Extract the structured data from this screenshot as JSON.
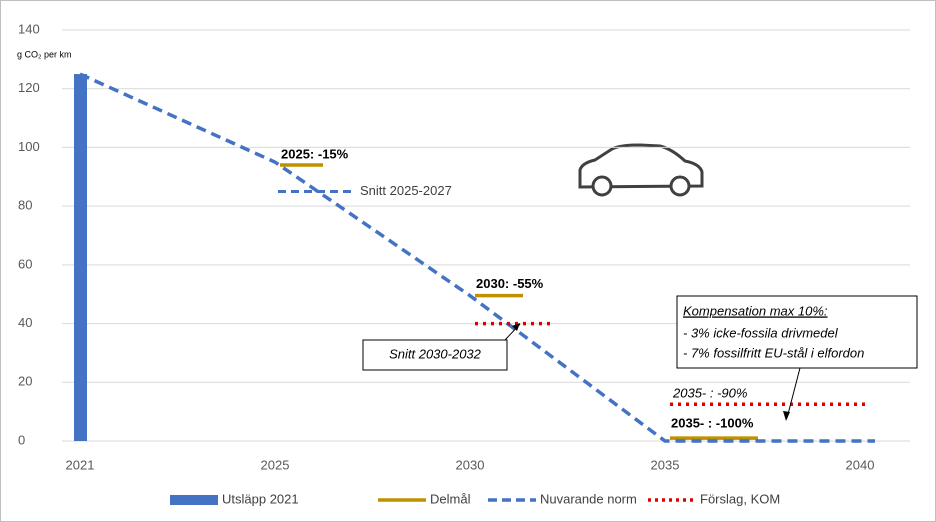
{
  "chart_data": {
    "type": "combo",
    "y_unit_label": "g CO₂ per km",
    "categories": [
      "2021",
      "2025",
      "2030",
      "2035",
      "2040"
    ],
    "ylim": [
      0,
      140
    ],
    "yticks": [
      0,
      20,
      40,
      60,
      80,
      100,
      120,
      140
    ],
    "grid": true,
    "legend": "bottom",
    "series": [
      {
        "name": "Utsläpp 2021",
        "color": "#4472c4",
        "kind": "bar",
        "values": [
          125,
          null,
          null,
          null,
          null
        ]
      },
      {
        "name": "Delmål",
        "color": "#bf9000",
        "kind": "segment",
        "values": [
          null,
          94,
          49.5,
          1,
          null
        ]
      },
      {
        "name": "Nuvarande norm",
        "color": "#4472c4",
        "kind": "dashed-line",
        "values": [
          125,
          95,
          49.5,
          0,
          0
        ]
      },
      {
        "name": "Förslag, KOM",
        "color": "#e00000",
        "kind": "dotted-segment",
        "values": [
          null,
          null,
          40,
          12.5,
          null
        ]
      }
    ],
    "snitt_2025": {
      "label": "Snitt 2025-2027",
      "value": 85
    },
    "annotations": [
      "2025: -15%",
      "2030: -55%",
      "2035- : -100%",
      "2035- : -90%"
    ],
    "snitt_2030_box": "Snitt 2030-2032",
    "compensation_box": {
      "title": "Kompensation max 10%:",
      "lines": [
        "- 3% icke-fossila drivmedel",
        "- 7% fossilfritt EU-stål i elfordon"
      ]
    }
  }
}
